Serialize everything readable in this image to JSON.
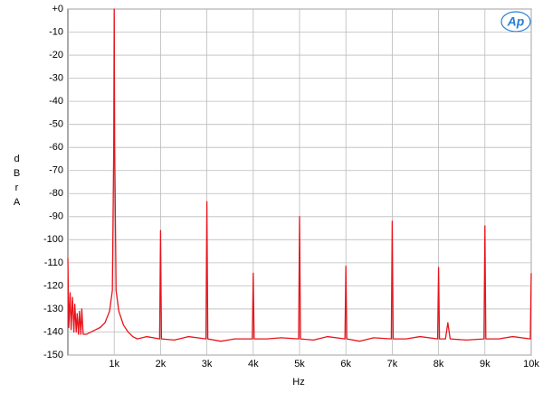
{
  "chart_data": {
    "type": "line",
    "x_label": "Hz",
    "y_label": "dBr A",
    "logo": "Ap",
    "color": "#e8141c",
    "grid": true,
    "xlim": [
      0,
      10000
    ],
    "xticks": [
      {
        "value": 1000,
        "label": "1k"
      },
      {
        "value": 2000,
        "label": "2k"
      },
      {
        "value": 3000,
        "label": "3k"
      },
      {
        "value": 4000,
        "label": "4k"
      },
      {
        "value": 5000,
        "label": "5k"
      },
      {
        "value": 6000,
        "label": "6k"
      },
      {
        "value": 7000,
        "label": "7k"
      },
      {
        "value": 8000,
        "label": "8k"
      },
      {
        "value": 9000,
        "label": "9k"
      },
      {
        "value": 10000,
        "label": "10k"
      }
    ],
    "ylim": [
      -150,
      0
    ],
    "yticks": [
      {
        "value": 0,
        "label": "+0"
      },
      -10,
      -20,
      -30,
      -40,
      -50,
      -60,
      -70,
      -80,
      -90,
      -100,
      -110,
      -120,
      -130,
      -140,
      -150
    ],
    "x": [
      0,
      20,
      50,
      70,
      100,
      130,
      150,
      180,
      200,
      230,
      250,
      280,
      300,
      330,
      400,
      500,
      600,
      700,
      800,
      900,
      960,
      990,
      1000,
      1010,
      1040,
      1100,
      1200,
      1300,
      1400,
      1500,
      1700,
      1980,
      2000,
      2020,
      2300,
      2600,
      2980,
      3000,
      3020,
      3300,
      3600,
      3980,
      4000,
      4020,
      4300,
      4600,
      4980,
      5000,
      5020,
      5300,
      5600,
      5980,
      6000,
      6020,
      6300,
      6600,
      6980,
      7000,
      7020,
      7300,
      7600,
      7980,
      8000,
      8020,
      8150,
      8200,
      8250,
      8600,
      8980,
      9000,
      9020,
      9300,
      9600,
      9980,
      10000
    ],
    "values": [
      -108,
      -138,
      -123,
      -139,
      -125,
      -140,
      -128,
      -140,
      -132,
      -141,
      -131,
      -141,
      -130,
      -141,
      -141,
      -140,
      -139,
      -138,
      -136,
      -131,
      -122,
      -60,
      0,
      -60,
      -122,
      -131,
      -137,
      -140,
      -142,
      -143,
      -142,
      -143,
      -96,
      -143,
      -143.5,
      -142,
      -143,
      -83.5,
      -143,
      -144,
      -143,
      -143,
      -114.5,
      -143,
      -143,
      -142.5,
      -143,
      -90,
      -143,
      -143.5,
      -142,
      -143,
      -111.5,
      -143,
      -144,
      -142.5,
      -143,
      -92,
      -143,
      -143,
      -142,
      -143,
      -112,
      -143,
      -143,
      -136,
      -143,
      -143.5,
      -143,
      -94,
      -143,
      -143,
      -142,
      -143,
      -114.5
    ]
  }
}
